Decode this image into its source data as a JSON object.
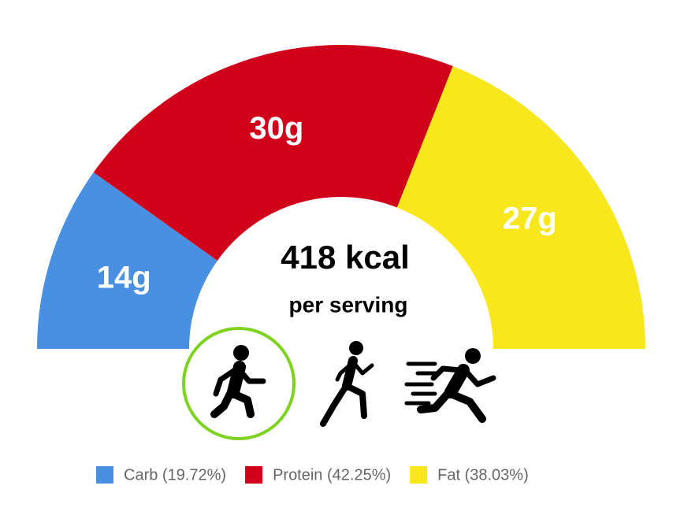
{
  "chart_data": {
    "type": "semi-donut",
    "categories": [
      "Carb (19.72%)",
      "Protein (42.25%)",
      "Fat (38.03%)"
    ],
    "values": [
      14,
      30,
      27
    ],
    "value_labels": [
      "14g",
      "30g",
      "27g"
    ],
    "colors": [
      "#4a90e2",
      "#d0021b",
      "#f8e71c"
    ],
    "center_text": [
      "418 kcal",
      "per serving"
    ]
  }
}
